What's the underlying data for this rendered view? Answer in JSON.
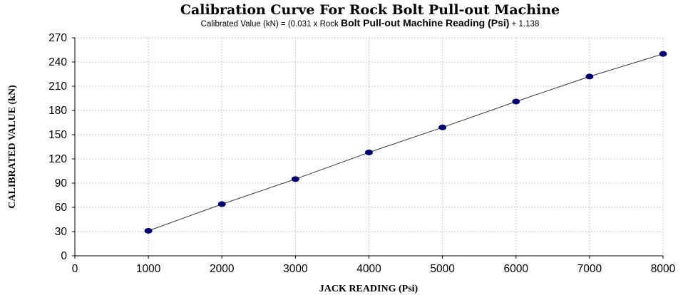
{
  "chart_data": {
    "type": "scatter",
    "title": "Calibration Curve For Rock Bolt Pull-out Machine",
    "subtitle_parts": [
      "Calibrated Value (kN) = (0.031 x Rock ",
      "Bolt Pull-out Machine Reading  (Psi)",
      " + 1.138"
    ],
    "xlabel": "JACK READING (Psi)",
    "ylabel": "CALIBRATED VALUE (kN)",
    "xlim": [
      0,
      8000
    ],
    "ylim": [
      0,
      270
    ],
    "x_ticks": [
      0,
      1000,
      2000,
      3000,
      4000,
      5000,
      6000,
      7000,
      8000
    ],
    "y_ticks": [
      0,
      30,
      60,
      90,
      120,
      150,
      180,
      210,
      240,
      270
    ],
    "grid": true,
    "series": [
      {
        "x": [
          1000,
          2000,
          3000,
          4000,
          5000,
          6000,
          7000,
          8000
        ],
        "y": [
          31,
          64,
          95,
          128,
          159,
          191,
          222,
          250
        ],
        "marker_color": "#00006e"
      }
    ],
    "trendline": {
      "slope": 0.031,
      "intercept": 1.138,
      "color": "#333333"
    }
  }
}
